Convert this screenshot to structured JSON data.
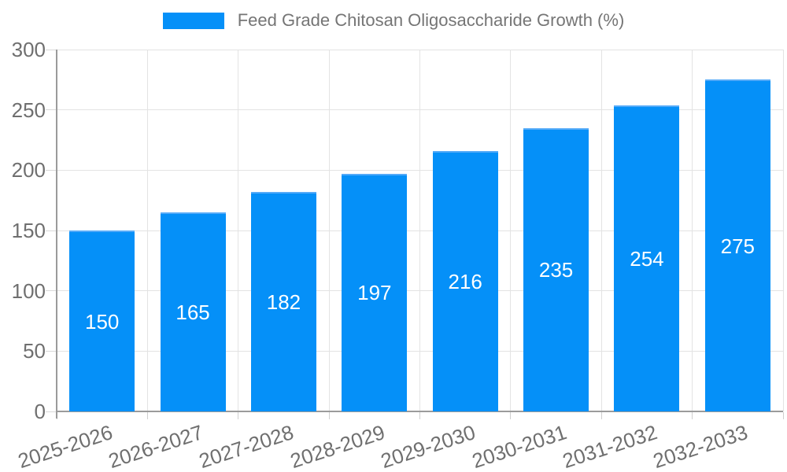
{
  "legend": {
    "label": "Feed Grade Chitosan Oligosaccharide Growth (%)"
  },
  "chart_data": {
    "type": "bar",
    "title": "Feed Grade Chitosan Oligosaccharide Growth (%)",
    "categories": [
      "2025-2026",
      "2026-2027",
      "2027-2028",
      "2028-2029",
      "2029-2030",
      "2030-2031",
      "2031-2032",
      "2032-2033"
    ],
    "values": [
      150,
      165,
      182,
      197,
      216,
      235,
      254,
      275
    ],
    "xlabel": "",
    "ylabel": "",
    "ylim": [
      0,
      300
    ],
    "ytick_step": 50,
    "yticks": [
      0,
      50,
      100,
      150,
      200,
      250,
      300
    ],
    "grid": true,
    "legend_position": "top-center",
    "x_label_rotation_deg": -18,
    "bar_color": "#0590f8",
    "bar_top_highlight_color": "#54aaf8",
    "value_label_color": "#ffffff",
    "tick_label_color": "#6f6f6f",
    "legend_text_color": "#757575",
    "gridline_color": "#e3e3e3",
    "axis_line_color": "#9b9b9b"
  }
}
